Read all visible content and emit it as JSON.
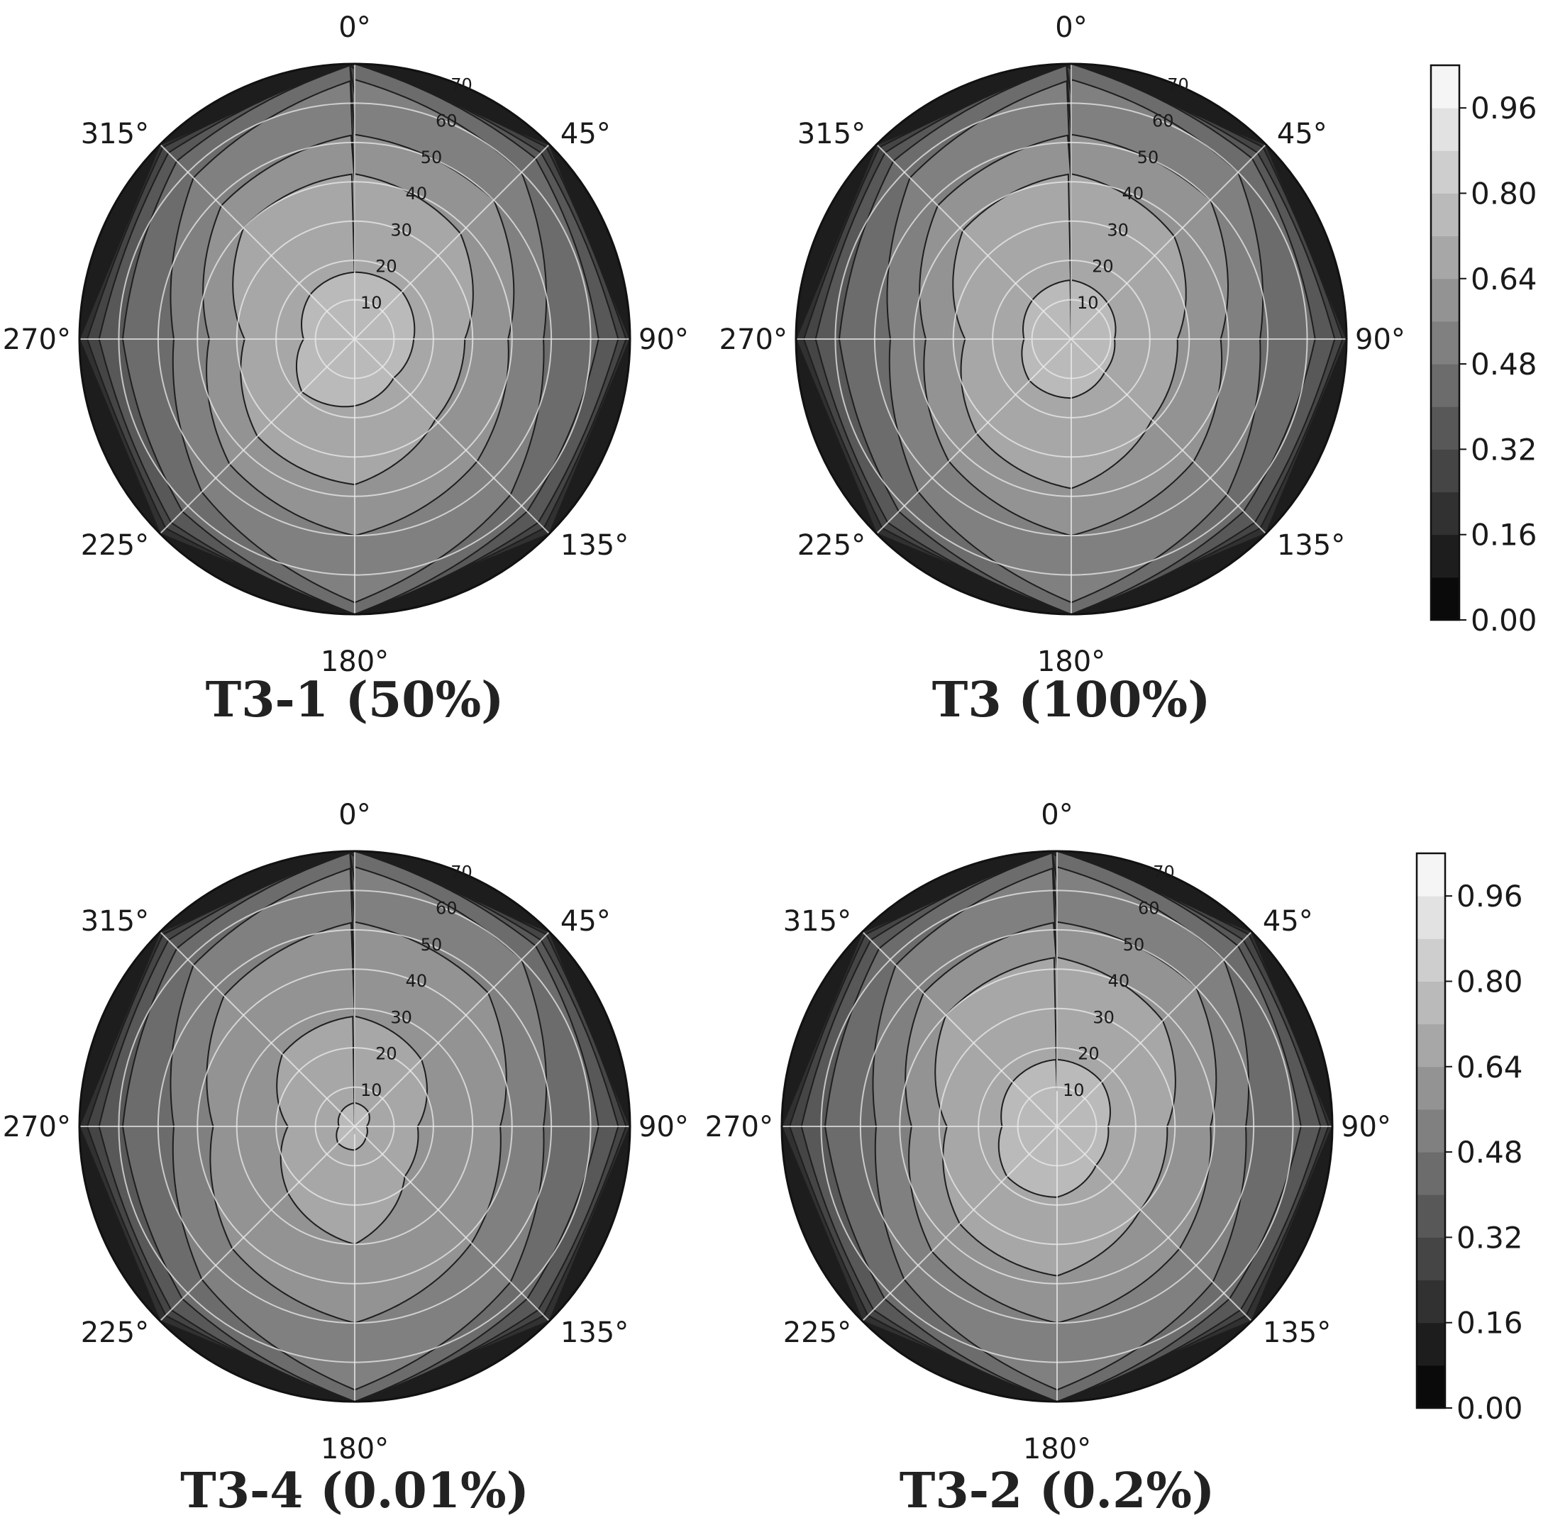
{
  "chart_data": [
    {
      "type": "polar-contour",
      "title": "T3-1 (50%)",
      "theta_labels": [
        "0°",
        "45°",
        "90°",
        "135°",
        "180°",
        "225°",
        "270°",
        "315°"
      ],
      "r_ticks": [
        "10",
        "20",
        "30",
        "40",
        "50",
        "60",
        "70"
      ],
      "rlim": [
        0,
        70
      ],
      "theta_direction": "clockwise",
      "theta_zero": "top",
      "grid": true,
      "levels": [
        0.16,
        0.24,
        0.32,
        0.4,
        0.48,
        0.56,
        0.64,
        0.72
      ],
      "contours": [
        {
          "level": 0.72,
          "radius": [
            17,
            17,
            15,
            14,
            17,
            19,
            13,
            16
          ],
          "shape": 1.0
        },
        {
          "level": 0.64,
          "radius": [
            42,
            38,
            28,
            29,
            37,
            35,
            28,
            40
          ],
          "shape": 1.4
        },
        {
          "level": 0.56,
          "radius": [
            52,
            50,
            39,
            44,
            50,
            45,
            37,
            48
          ],
          "shape": 1.7
        },
        {
          "level": 0.48,
          "radius": [
            66,
            60,
            48,
            56,
            67,
            55,
            46,
            58
          ],
          "shape": 2.2
        },
        {
          "level": 0.4,
          "radius": [
            70,
            65,
            62,
            62,
            70,
            62,
            59,
            64
          ],
          "shape": 2.6
        },
        {
          "level": 0.32,
          "radius": [
            70,
            67,
            67,
            66,
            70,
            66,
            65,
            67
          ],
          "shape": 3.0
        },
        {
          "level": 0.24,
          "radius": [
            70,
            69,
            69,
            68,
            70,
            68,
            68,
            69
          ],
          "shape": 3.5
        },
        {
          "level": 0.16,
          "radius": [
            70,
            70,
            70,
            70,
            70,
            70,
            70,
            70
          ],
          "shape": 4.0
        }
      ]
    },
    {
      "type": "polar-contour",
      "title": "T3 (100%)",
      "theta_labels": [
        "0°",
        "45°",
        "90°",
        "135°",
        "180°",
        "225°",
        "270°",
        "315°"
      ],
      "r_ticks": [
        "10",
        "20",
        "30",
        "40",
        "50",
        "60",
        "70"
      ],
      "rlim": [
        0,
        70
      ],
      "theta_direction": "clockwise",
      "theta_zero": "top",
      "grid": true,
      "levels": [
        0.16,
        0.24,
        0.32,
        0.4,
        0.48,
        0.56,
        0.64,
        0.72
      ],
      "contours": [
        {
          "level": 0.72,
          "radius": [
            15,
            13,
            11,
            12,
            15,
            15,
            12,
            14
          ],
          "shape": 1.0
        },
        {
          "level": 0.64,
          "radius": [
            42,
            37,
            27,
            29,
            38,
            34,
            27,
            39
          ],
          "shape": 1.4
        },
        {
          "level": 0.56,
          "radius": [
            52,
            50,
            38,
            44,
            50,
            44,
            37,
            48
          ],
          "shape": 1.7
        },
        {
          "level": 0.48,
          "radius": [
            66,
            60,
            48,
            56,
            67,
            55,
            46,
            58
          ],
          "shape": 2.2
        },
        {
          "level": 0.4,
          "radius": [
            70,
            65,
            62,
            62,
            70,
            62,
            59,
            64
          ],
          "shape": 2.6
        },
        {
          "level": 0.32,
          "radius": [
            70,
            67,
            67,
            66,
            70,
            66,
            65,
            67
          ],
          "shape": 3.0
        },
        {
          "level": 0.24,
          "radius": [
            70,
            69,
            69,
            68,
            70,
            68,
            68,
            69
          ],
          "shape": 3.5
        },
        {
          "level": 0.16,
          "radius": [
            70,
            70,
            70,
            70,
            70,
            70,
            70,
            70
          ],
          "shape": 4.0
        }
      ]
    },
    {
      "type": "polar-contour",
      "title": "T3-4 (0.01%)",
      "theta_labels": [
        "0°",
        "45°",
        "90°",
        "135°",
        "180°",
        "225°",
        "270°",
        "315°"
      ],
      "r_ticks": [
        "10",
        "20",
        "30",
        "40",
        "50",
        "60",
        "70"
      ],
      "rlim": [
        0,
        70
      ],
      "theta_direction": "clockwise",
      "theta_zero": "top",
      "grid": true,
      "levels": [
        0.16,
        0.24,
        0.32,
        0.4,
        0.48,
        0.56,
        0.64,
        0.72
      ],
      "contours": [
        {
          "level": 0.72,
          "radius": [
            6,
            5,
            3,
            4,
            6,
            6,
            4,
            5
          ],
          "shape": 1.0
        },
        {
          "level": 0.64,
          "radius": [
            28,
            24,
            16,
            18,
            30,
            24,
            17,
            26
          ],
          "shape": 1.2
        },
        {
          "level": 0.56,
          "radius": [
            52,
            48,
            37,
            42,
            50,
            44,
            36,
            47
          ],
          "shape": 1.7
        },
        {
          "level": 0.48,
          "radius": [
            66,
            60,
            48,
            56,
            67,
            55,
            46,
            58
          ],
          "shape": 2.2
        },
        {
          "level": 0.4,
          "radius": [
            70,
            65,
            62,
            62,
            70,
            62,
            59,
            64
          ],
          "shape": 2.6
        },
        {
          "level": 0.32,
          "radius": [
            70,
            67,
            67,
            66,
            70,
            66,
            65,
            67
          ],
          "shape": 3.0
        },
        {
          "level": 0.24,
          "radius": [
            70,
            69,
            69,
            68,
            70,
            68,
            68,
            69
          ],
          "shape": 3.5
        },
        {
          "level": 0.16,
          "radius": [
            70,
            70,
            70,
            70,
            70,
            70,
            70,
            70
          ],
          "shape": 4.0
        }
      ]
    },
    {
      "type": "polar-contour",
      "title": "T3-2 (0.2%)",
      "theta_labels": [
        "0°",
        "45°",
        "90°",
        "135°",
        "180°",
        "225°",
        "270°",
        "315°"
      ],
      "r_ticks": [
        "10",
        "20",
        "30",
        "40",
        "50",
        "60",
        "70"
      ],
      "rlim": [
        0,
        70
      ],
      "theta_direction": "clockwise",
      "theta_zero": "top",
      "grid": true,
      "levels": [
        0.16,
        0.24,
        0.32,
        0.4,
        0.48,
        0.56,
        0.64,
        0.72
      ],
      "contours": [
        {
          "level": 0.72,
          "radius": [
            17,
            16,
            13,
            14,
            18,
            18,
            14,
            16
          ],
          "shape": 1.0
        },
        {
          "level": 0.64,
          "radius": [
            43,
            38,
            28,
            30,
            38,
            35,
            28,
            40
          ],
          "shape": 1.4
        },
        {
          "level": 0.56,
          "radius": [
            52,
            50,
            39,
            44,
            50,
            45,
            37,
            48
          ],
          "shape": 1.7
        },
        {
          "level": 0.48,
          "radius": [
            66,
            60,
            48,
            56,
            67,
            55,
            46,
            58
          ],
          "shape": 2.2
        },
        {
          "level": 0.4,
          "radius": [
            70,
            65,
            62,
            62,
            70,
            62,
            59,
            64
          ],
          "shape": 2.6
        },
        {
          "level": 0.32,
          "radius": [
            70,
            67,
            67,
            66,
            70,
            66,
            65,
            67
          ],
          "shape": 3.0
        },
        {
          "level": 0.24,
          "radius": [
            70,
            69,
            69,
            68,
            70,
            68,
            68,
            69
          ],
          "shape": 3.5
        },
        {
          "level": 0.16,
          "radius": [
            70,
            70,
            70,
            70,
            70,
            70,
            70,
            70
          ],
          "shape": 4.0
        }
      ]
    }
  ],
  "colorbar": {
    "min": 0.0,
    "max": 1.04,
    "step": 0.08,
    "colormap": "gray",
    "ticks": [
      "0.96",
      "0.80",
      "0.64",
      "0.48",
      "0.32",
      "0.16",
      "0.00"
    ],
    "tick_values": [
      0.96,
      0.8,
      0.64,
      0.48,
      0.32,
      0.16,
      0.0
    ],
    "count": 2
  }
}
